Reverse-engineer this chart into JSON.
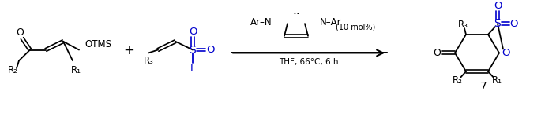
{
  "bg_color": "#ffffff",
  "black": "#000000",
  "blue": "#0000cd",
  "fig_width": 7.09,
  "fig_height": 1.44,
  "dpi": 100,
  "reactant1_otms": "OTMS",
  "reactant1_r1": "R₁",
  "reactant1_r2": "R₂",
  "reactant1_o": "O",
  "plus": "+",
  "reactant2_r3": "R₃",
  "reactant2_s": "S",
  "reactant2_o1": "O",
  "reactant2_o2": "O",
  "reactant2_f": "F",
  "cat_ar_n_left": "Ar–N",
  "cat_n_ar_right": "N–Ar",
  "cat_dots": "··",
  "cat_mol": "(10 mol%)",
  "arrow_text": "THF, 66°C, 6 h",
  "prod_r1": "R₁",
  "prod_r2": "R₂",
  "prod_r3": "R₃",
  "prod_o_carbonyl": "O",
  "prod_o_ring": "O",
  "prod_s": "S",
  "prod_o_s1": "O",
  "prod_o_s2": "O",
  "prod_label": "7"
}
